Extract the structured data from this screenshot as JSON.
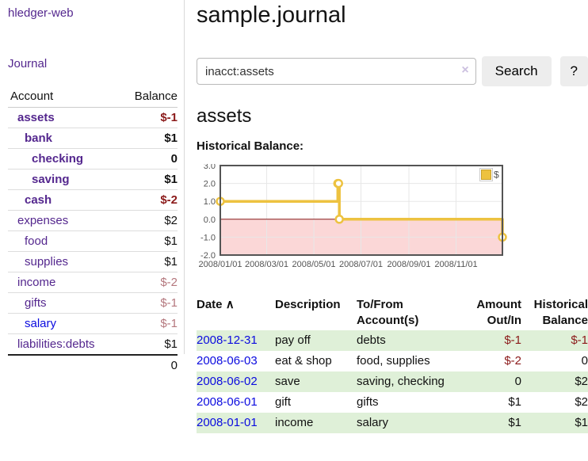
{
  "app": {
    "brand": "hledger-web",
    "nav_journal": "Journal"
  },
  "colors": {
    "link_purple": "#54278e",
    "link_blue": "#0b0bdf",
    "negative_dark": "#8b1a1a",
    "negative_muted": "#b4777d",
    "row_green": "#dff0d8",
    "button_bg": "#ededed"
  },
  "sidebar": {
    "accounts_header": {
      "account": "Account",
      "balance": "Balance"
    },
    "accounts": [
      {
        "label": "assets",
        "level": 1,
        "bold": true,
        "link_color": "purple",
        "balance": "$-1",
        "balance_style": "neg-bold"
      },
      {
        "label": "bank",
        "level": 2,
        "bold": true,
        "link_color": "purple",
        "balance": "$1",
        "balance_style": "bold"
      },
      {
        "label": "checking",
        "level": 3,
        "bold": true,
        "link_color": "purple",
        "balance": "0",
        "balance_style": "bold"
      },
      {
        "label": "saving",
        "level": 3,
        "bold": true,
        "link_color": "purple",
        "balance": "$1",
        "balance_style": "bold"
      },
      {
        "label": "cash",
        "level": 2,
        "bold": true,
        "link_color": "purple",
        "balance": "$-2",
        "balance_style": "neg-bold"
      },
      {
        "label": "expenses",
        "level": 1,
        "bold": false,
        "link_color": "purple",
        "balance": "$2",
        "balance_style": "plain"
      },
      {
        "label": "food",
        "level": 2,
        "bold": false,
        "link_color": "purple",
        "balance": "$1",
        "balance_style": "plain"
      },
      {
        "label": "supplies",
        "level": 2,
        "bold": false,
        "link_color": "purple",
        "balance": "$1",
        "balance_style": "plain"
      },
      {
        "label": "income",
        "level": 1,
        "bold": false,
        "link_color": "purple",
        "balance": "$-2",
        "balance_style": "neg-muted"
      },
      {
        "label": "gifts",
        "level": 2,
        "bold": false,
        "link_color": "purple",
        "balance": "$-1",
        "balance_style": "neg-muted"
      },
      {
        "label": "salary",
        "level": 2,
        "bold": false,
        "link_color": "blue",
        "balance": "$-1",
        "balance_style": "neg-muted"
      },
      {
        "label": "liabilities:debts",
        "level": 1,
        "bold": false,
        "link_color": "purple",
        "balance": "$1",
        "balance_style": "plain"
      }
    ],
    "total": "0"
  },
  "header": {
    "title": "sample.journal"
  },
  "search": {
    "value": "inacct:assets",
    "clear_icon": "×",
    "button_label": "Search",
    "help_label": "?"
  },
  "account_page": {
    "heading": "assets",
    "chart_label": "Historical Balance:"
  },
  "chart_data": {
    "type": "line",
    "title": "Historical Balance",
    "step": true,
    "x_range": [
      "2008-01-01",
      "2008-12-31"
    ],
    "ylim": [
      -2,
      3
    ],
    "y_ticks": [
      3.0,
      2.0,
      1.0,
      0.0,
      -1.0,
      -2.0
    ],
    "x_ticks": [
      {
        "date": "2008-01-01",
        "label": "2008/01/01"
      },
      {
        "date": "2008-03-01",
        "label": "2008/03/01"
      },
      {
        "date": "2008-05-01",
        "label": "2008/05/01"
      },
      {
        "date": "2008-07-01",
        "label": "2008/07/01"
      },
      {
        "date": "2008-09-01",
        "label": "2008/09/01"
      },
      {
        "date": "2008-11-01",
        "label": "2008/11/01"
      }
    ],
    "series": [
      {
        "name": "$",
        "color": "#edc240",
        "points": [
          [
            "2008-01-01",
            1
          ],
          [
            "2008-06-01",
            2
          ],
          [
            "2008-06-02",
            2
          ],
          [
            "2008-06-03",
            0
          ],
          [
            "2008-12-31",
            -1
          ]
        ]
      }
    ],
    "legend": {
      "label": "$",
      "position": "top-right"
    },
    "negative_region": {
      "below": 0,
      "fill": "#fbd7d7",
      "line_color": "#8b1a1a"
    },
    "grid": true,
    "border_color": "#545454",
    "tick_label_color": "#545454"
  },
  "register": {
    "columns": [
      {
        "label": "Date",
        "align": "left"
      },
      {
        "label": "Description",
        "align": "left"
      },
      {
        "label": "To/From Account(s)",
        "align": "left"
      },
      {
        "label": "Amount Out/In",
        "align": "right"
      },
      {
        "label": "Historical Balance",
        "align": "right"
      }
    ],
    "sort_indicator": "∧",
    "rows": [
      {
        "date": "2008-12-31",
        "description": "pay off",
        "accounts": "debts",
        "amount": "$-1",
        "balance": "$-1"
      },
      {
        "date": "2008-06-03",
        "description": "eat & shop",
        "accounts": "food, supplies",
        "amount": "$-2",
        "balance": "0"
      },
      {
        "date": "2008-06-02",
        "description": "save",
        "accounts": "saving, checking",
        "amount": "0",
        "balance": "$2"
      },
      {
        "date": "2008-06-01",
        "description": "gift",
        "accounts": "gifts",
        "amount": "$1",
        "balance": "$2"
      },
      {
        "date": "2008-01-01",
        "description": "income",
        "accounts": "salary",
        "amount": "$1",
        "balance": "$1"
      }
    ]
  }
}
